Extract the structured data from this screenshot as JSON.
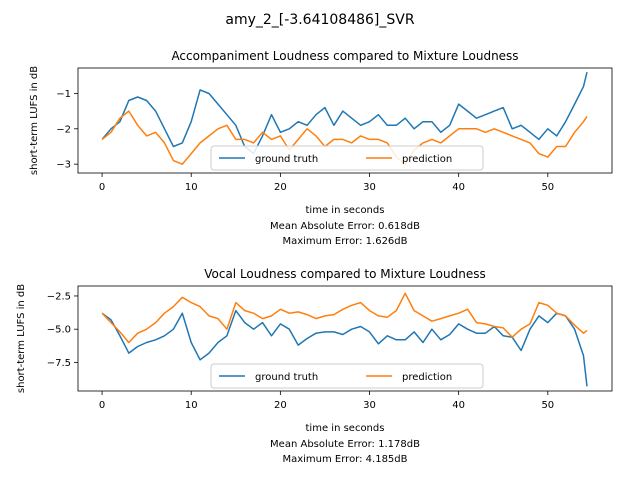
{
  "figure": {
    "suptitle": "amy_2_[-3.64108486]_SVR"
  },
  "colors": {
    "ground_truth": "#1f77b4",
    "prediction": "#ff7f0e",
    "axes": "#000000",
    "legend_border": "#cccccc"
  },
  "chart_data": [
    {
      "type": "line",
      "title": "Accompaniment Loudness compared to Mixture Loudness",
      "xlabel": "time in seconds",
      "ylabel": "short-term LUFS in dB",
      "xlim": [
        -2.7,
        57.2
      ],
      "ylim": [
        -3.25,
        -0.28
      ],
      "xticks": [
        0,
        10,
        20,
        30,
        40,
        50
      ],
      "yticks": [
        -3,
        -2,
        -1
      ],
      "legend": {
        "placement": "lower center",
        "columns": 2
      },
      "grid": false,
      "annotations": [
        "Mean Absolute Error: 0.618dB",
        "Maximum Error: 1.626dB"
      ],
      "series": [
        {
          "name": "ground truth",
          "x": [
            0,
            1,
            2,
            3,
            4,
            5,
            6,
            7,
            8,
            9,
            10,
            11,
            12,
            13,
            14,
            15,
            16,
            17,
            18,
            19,
            20,
            21,
            22,
            23,
            24,
            25,
            26,
            27,
            28,
            29,
            30,
            31,
            32,
            33,
            34,
            35,
            36,
            37,
            38,
            39,
            40,
            41,
            42,
            43,
            44,
            45,
            46,
            47,
            48,
            49,
            50,
            51,
            52,
            53,
            54,
            54.4
          ],
          "y": [
            -2.3,
            -2.0,
            -1.8,
            -1.2,
            -1.1,
            -1.2,
            -1.5,
            -2.0,
            -2.5,
            -2.4,
            -1.8,
            -0.9,
            -1.0,
            -1.3,
            -1.6,
            -1.9,
            -2.5,
            -2.7,
            -2.2,
            -1.6,
            -2.1,
            -2.0,
            -1.8,
            -1.9,
            -1.6,
            -1.4,
            -1.9,
            -1.5,
            -1.7,
            -1.9,
            -1.8,
            -1.6,
            -1.9,
            -1.9,
            -1.7,
            -2.0,
            -1.8,
            -1.8,
            -2.1,
            -1.9,
            -1.3,
            -1.5,
            -1.7,
            -1.6,
            -1.5,
            -1.4,
            -2.0,
            -1.9,
            -2.1,
            -2.3,
            -2.0,
            -2.2,
            -1.8,
            -1.3,
            -0.8,
            -0.4
          ]
        },
        {
          "name": "prediction",
          "x": [
            0,
            1,
            2,
            3,
            4,
            5,
            6,
            7,
            8,
            9,
            10,
            11,
            12,
            13,
            14,
            15,
            16,
            17,
            18,
            19,
            20,
            21,
            22,
            23,
            24,
            25,
            26,
            27,
            28,
            29,
            30,
            31,
            32,
            33,
            34,
            35,
            36,
            37,
            38,
            39,
            40,
            41,
            42,
            43,
            44,
            45,
            46,
            47,
            48,
            49,
            50,
            51,
            52,
            53,
            54,
            54.4
          ],
          "y": [
            -2.3,
            -2.1,
            -1.7,
            -1.5,
            -1.9,
            -2.2,
            -2.1,
            -2.4,
            -2.9,
            -3.0,
            -2.7,
            -2.4,
            -2.2,
            -2.0,
            -1.9,
            -2.3,
            -2.3,
            -2.4,
            -2.1,
            -2.3,
            -2.2,
            -2.6,
            -2.3,
            -2.0,
            -2.2,
            -2.5,
            -2.3,
            -2.3,
            -2.4,
            -2.2,
            -2.3,
            -2.3,
            -2.4,
            -2.8,
            -3.0,
            -2.6,
            -2.4,
            -2.3,
            -2.4,
            -2.2,
            -2.0,
            -2.0,
            -2.0,
            -2.1,
            -2.0,
            -2.1,
            -2.2,
            -2.3,
            -2.4,
            -2.7,
            -2.8,
            -2.5,
            -2.5,
            -2.1,
            -1.8,
            -1.65
          ]
        }
      ]
    },
    {
      "type": "line",
      "title": "Vocal Loudness compared to Mixture Loudness",
      "xlabel": "time in seconds",
      "ylabel": "short-term LUFS in dB",
      "xlim": [
        -2.7,
        57.2
      ],
      "ylim": [
        -9.65,
        -1.75
      ],
      "xticks": [
        0,
        10,
        20,
        30,
        40,
        50
      ],
      "yticks": [
        -7.5,
        -5.0,
        -2.5
      ],
      "yticklabels": [
        "−7.5",
        "−5.0",
        "−2.5"
      ],
      "legend": {
        "placement": "lower center",
        "columns": 2
      },
      "grid": false,
      "annotations": [
        "Mean Absolute Error: 1.178dB",
        "Maximum Error: 4.185dB"
      ],
      "series": [
        {
          "name": "ground truth",
          "x": [
            0,
            1,
            2,
            3,
            4,
            5,
            6,
            7,
            8,
            9,
            10,
            11,
            12,
            13,
            14,
            15,
            16,
            17,
            18,
            19,
            20,
            21,
            22,
            23,
            24,
            25,
            26,
            27,
            28,
            29,
            30,
            31,
            32,
            33,
            34,
            35,
            36,
            37,
            38,
            39,
            40,
            41,
            42,
            43,
            44,
            45,
            46,
            47,
            48,
            49,
            50,
            51,
            52,
            53,
            54,
            54.4
          ],
          "y": [
            -3.8,
            -4.3,
            -5.5,
            -6.8,
            -6.3,
            -6.0,
            -5.8,
            -5.5,
            -5.0,
            -3.8,
            -6.0,
            -7.3,
            -6.8,
            -6.0,
            -5.5,
            -3.6,
            -4.5,
            -5.0,
            -4.5,
            -5.5,
            -4.6,
            -5.0,
            -6.2,
            -5.7,
            -5.3,
            -5.2,
            -5.2,
            -5.4,
            -5.0,
            -4.8,
            -5.2,
            -6.1,
            -5.5,
            -5.8,
            -5.8,
            -5.2,
            -6.0,
            -5.0,
            -5.8,
            -5.4,
            -4.6,
            -5.0,
            -5.3,
            -5.3,
            -4.8,
            -5.5,
            -5.6,
            -6.6,
            -5.0,
            -4.0,
            -4.5,
            -3.8,
            -4.0,
            -5.0,
            -7.0,
            -9.3
          ]
        },
        {
          "name": "prediction",
          "x": [
            0,
            1,
            2,
            3,
            4,
            5,
            6,
            7,
            8,
            9,
            10,
            11,
            12,
            13,
            14,
            15,
            16,
            17,
            18,
            19,
            20,
            21,
            22,
            23,
            24,
            25,
            26,
            27,
            28,
            29,
            30,
            31,
            32,
            33,
            34,
            35,
            36,
            37,
            38,
            39,
            40,
            41,
            42,
            43,
            44,
            45,
            46,
            47,
            48,
            49,
            50,
            51,
            52,
            53,
            54,
            54.4
          ],
          "y": [
            -3.8,
            -4.5,
            -5.2,
            -6.0,
            -5.3,
            -5.0,
            -4.5,
            -3.8,
            -3.3,
            -2.6,
            -3.0,
            -3.3,
            -4.0,
            -4.2,
            -5.0,
            -3.0,
            -3.6,
            -3.8,
            -4.2,
            -4.0,
            -3.5,
            -3.8,
            -3.7,
            -3.9,
            -4.2,
            -4.0,
            -3.9,
            -3.5,
            -3.2,
            -3.0,
            -3.6,
            -4.0,
            -4.1,
            -3.6,
            -2.3,
            -3.6,
            -4.0,
            -4.4,
            -4.2,
            -4.0,
            -3.8,
            -3.5,
            -4.5,
            -4.6,
            -4.8,
            -4.9,
            -5.6,
            -5.0,
            -4.6,
            -3.0,
            -3.2,
            -3.8,
            -4.0,
            -4.7,
            -5.3,
            -5.1
          ]
        }
      ]
    }
  ]
}
